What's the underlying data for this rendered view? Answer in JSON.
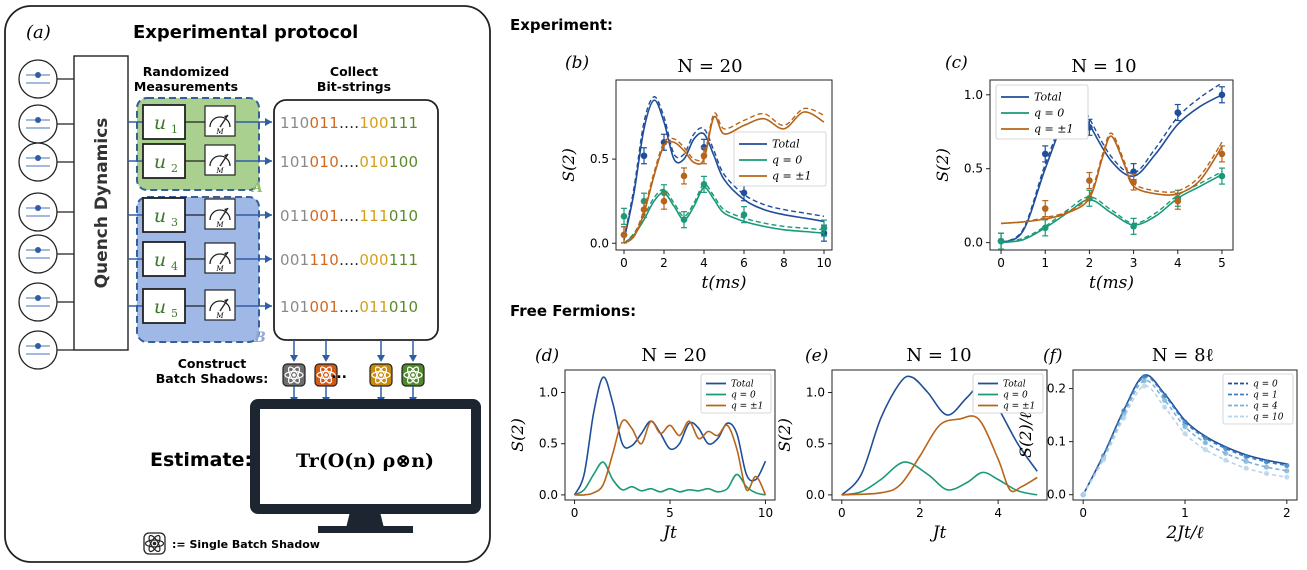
{
  "panel_a": {
    "label": "(a)",
    "title": "Experimental protocol",
    "quench": "Quench Dynamics",
    "randomized": [
      "Randomized",
      "Measurements"
    ],
    "collect": [
      "Collect",
      "Bit-strings"
    ],
    "unitaries": [
      "u",
      "u",
      "u",
      "u",
      "u"
    ],
    "unitary_subs": [
      "1",
      "2",
      "3",
      "4",
      "5"
    ],
    "meter_label": "M",
    "region_a": "A",
    "region_b": "B",
    "bitstrings": [
      [
        {
          "t": "110",
          "c": "#8a8a8a"
        },
        {
          "t": "011",
          "c": "#d2691e"
        },
        {
          "t": "....",
          "c": "#222222"
        },
        {
          "t": "100",
          "c": "#d4a017"
        },
        {
          "t": "111",
          "c": "#5a8a2a"
        }
      ],
      [
        {
          "t": "101",
          "c": "#8a8a8a"
        },
        {
          "t": "010",
          "c": "#d2691e"
        },
        {
          "t": "....",
          "c": "#222222"
        },
        {
          "t": "010",
          "c": "#d4a017"
        },
        {
          "t": "100",
          "c": "#5a8a2a"
        }
      ],
      [
        {
          "t": "011",
          "c": "#8a8a8a"
        },
        {
          "t": "001",
          "c": "#d2691e"
        },
        {
          "t": "....",
          "c": "#222222"
        },
        {
          "t": "111",
          "c": "#d4a017"
        },
        {
          "t": "010",
          "c": "#5a8a2a"
        }
      ],
      [
        {
          "t": "001",
          "c": "#8a8a8a"
        },
        {
          "t": "110",
          "c": "#d2691e"
        },
        {
          "t": "....",
          "c": "#222222"
        },
        {
          "t": "000",
          "c": "#d4a017"
        },
        {
          "t": "111",
          "c": "#5a8a2a"
        }
      ],
      [
        {
          "t": "101",
          "c": "#8a8a8a"
        },
        {
          "t": "001",
          "c": "#d2691e"
        },
        {
          "t": "....",
          "c": "#222222"
        },
        {
          "t": "011",
          "c": "#d4a017"
        },
        {
          "t": "010",
          "c": "#5a8a2a"
        }
      ]
    ],
    "construct": [
      "Construct",
      "Batch Shadows:"
    ],
    "shadow_colors": [
      "#6e6e6e",
      "#d05a16",
      "#c98a0a",
      "#4f8a2a"
    ],
    "dots": "...",
    "estimate": "Estimate:",
    "formula": "Tr(O(n) ρ⊗n)",
    "legend_text": ":= Single Batch Shadow"
  },
  "headers": {
    "experiment": "Experiment:",
    "free_fermions": "Free Fermions:"
  },
  "chart_data": [
    {
      "id": "b",
      "type": "line",
      "label": "(b)",
      "title": "N = 20",
      "xlabel": "t(ms)",
      "ylabel": "S(2)",
      "xlim": [
        -0.4,
        10.4
      ],
      "ylim": [
        -0.04,
        0.97
      ],
      "xticks": [
        0,
        2,
        4,
        6,
        8,
        10
      ],
      "yticks": [
        0.0,
        0.5
      ],
      "legend_position": "center-right",
      "series": [
        {
          "name": "Total",
          "color": "#1f4e9a",
          "x": [
            0,
            0.5,
            1,
            1.5,
            2,
            2.5,
            3,
            3.5,
            4,
            4.5,
            5,
            6,
            7,
            8,
            9,
            10
          ],
          "y": [
            0.02,
            0.3,
            0.68,
            0.85,
            0.72,
            0.5,
            0.5,
            0.62,
            0.65,
            0.52,
            0.38,
            0.26,
            0.2,
            0.17,
            0.15,
            0.13
          ],
          "y_dashed": [
            0.03,
            0.33,
            0.72,
            0.87,
            0.75,
            0.53,
            0.53,
            0.65,
            0.68,
            0.55,
            0.41,
            0.29,
            0.23,
            0.2,
            0.18,
            0.16
          ],
          "points_x": [
            0,
            1,
            2,
            4,
            6,
            10
          ],
          "points_y": [
            0.05,
            0.52,
            0.6,
            0.57,
            0.3,
            0.06
          ]
        },
        {
          "name": "q = 0",
          "color": "#1a9a78",
          "x": [
            0,
            0.5,
            1,
            1.5,
            2,
            2.5,
            3,
            3.5,
            4,
            4.5,
            5,
            6,
            7,
            8,
            9,
            10
          ],
          "y": [
            0.0,
            0.05,
            0.14,
            0.25,
            0.3,
            0.22,
            0.14,
            0.22,
            0.33,
            0.26,
            0.18,
            0.13,
            0.1,
            0.08,
            0.07,
            0.06
          ],
          "y_dashed": [
            0.0,
            0.06,
            0.16,
            0.27,
            0.32,
            0.24,
            0.16,
            0.24,
            0.35,
            0.28,
            0.2,
            0.15,
            0.12,
            0.1,
            0.09,
            0.08
          ],
          "points_x": [
            0,
            1,
            2,
            3,
            4,
            6,
            10
          ],
          "points_y": [
            0.16,
            0.25,
            0.3,
            0.14,
            0.35,
            0.17,
            0.09
          ]
        },
        {
          "name": "q = ±1",
          "color": "#b8641a",
          "x": [
            0,
            0.5,
            1,
            1.5,
            2,
            2.5,
            3,
            3.5,
            4,
            4.5,
            5,
            6,
            7,
            8,
            9,
            10
          ],
          "y": [
            0.0,
            0.04,
            0.18,
            0.4,
            0.58,
            0.6,
            0.55,
            0.48,
            0.5,
            0.75,
            0.65,
            0.7,
            0.74,
            0.68,
            0.78,
            0.72
          ],
          "y_dashed": [
            0.0,
            0.05,
            0.2,
            0.42,
            0.6,
            0.62,
            0.57,
            0.5,
            0.52,
            0.77,
            0.68,
            0.73,
            0.77,
            0.7,
            0.8,
            0.76
          ],
          "points_x": [
            0,
            1,
            2,
            3,
            4
          ],
          "points_y": [
            0.05,
            0.2,
            0.25,
            0.4,
            0.52
          ]
        }
      ]
    },
    {
      "id": "c",
      "type": "line",
      "label": "(c)",
      "title": "N = 10",
      "xlabel": "t(ms)",
      "ylabel": "S(2)",
      "xlim": [
        -0.25,
        5.25
      ],
      "ylim": [
        -0.05,
        1.1
      ],
      "xticks": [
        0,
        1,
        2,
        3,
        4,
        5
      ],
      "yticks": [
        0.0,
        0.5,
        1.0
      ],
      "legend_position": "top-left",
      "series": [
        {
          "name": "Total",
          "color": "#1f4e9a",
          "x": [
            0,
            0.5,
            1,
            1.5,
            1.8,
            2,
            2.5,
            3,
            3.5,
            4,
            4.5,
            5
          ],
          "y": [
            0.0,
            0.08,
            0.5,
            0.88,
            0.92,
            0.8,
            0.55,
            0.45,
            0.6,
            0.8,
            0.92,
            1.0
          ],
          "y_dashed": [
            0.0,
            0.09,
            0.53,
            0.9,
            0.95,
            0.84,
            0.58,
            0.47,
            0.64,
            0.85,
            0.98,
            1.08
          ],
          "points_x": [
            0,
            1,
            2,
            3,
            4,
            5
          ],
          "points_y": [
            0.01,
            0.6,
            0.78,
            0.48,
            0.88,
            1.0
          ]
        },
        {
          "name": "q = 0",
          "color": "#1a9a78",
          "x": [
            0,
            0.5,
            1,
            1.5,
            2,
            2.5,
            3,
            3.5,
            4,
            4.5,
            5
          ],
          "y": [
            0.0,
            0.02,
            0.1,
            0.2,
            0.29,
            0.2,
            0.12,
            0.18,
            0.3,
            0.38,
            0.46
          ],
          "y_dashed": [
            0.0,
            0.03,
            0.11,
            0.22,
            0.31,
            0.22,
            0.13,
            0.2,
            0.32,
            0.4,
            0.48
          ],
          "points_x": [
            0,
            1,
            2,
            3,
            4,
            5
          ],
          "points_y": [
            0.01,
            0.1,
            0.3,
            0.11,
            0.3,
            0.45
          ]
        },
        {
          "name": "q = ±1",
          "color": "#b8641a",
          "x": [
            0,
            0.5,
            1,
            1.5,
            2,
            2.3,
            2.5,
            2.8,
            3,
            3.5,
            4,
            4.5,
            5
          ],
          "y": [
            0.13,
            0.14,
            0.16,
            0.2,
            0.3,
            0.58,
            0.72,
            0.52,
            0.38,
            0.33,
            0.33,
            0.42,
            0.65
          ],
          "y_dashed": [
            0.13,
            0.14,
            0.17,
            0.21,
            0.32,
            0.6,
            0.74,
            0.54,
            0.4,
            0.35,
            0.35,
            0.45,
            0.68
          ],
          "points_x": [
            1,
            2,
            3,
            4,
            5
          ],
          "points_y": [
            0.23,
            0.42,
            0.41,
            0.28,
            0.6
          ]
        }
      ]
    },
    {
      "id": "d",
      "type": "line",
      "label": "(d)",
      "title": "N = 20",
      "xlabel": "Jt",
      "ylabel": "S(2)",
      "xlim": [
        -0.5,
        10.5
      ],
      "ylim": [
        -0.05,
        1.22
      ],
      "xticks": [
        0,
        5,
        10
      ],
      "yticks": [
        0.0,
        0.5,
        1.0
      ],
      "legend_position": "top-right",
      "series": [
        {
          "name": "Total",
          "color": "#1f4e9a",
          "x": [
            0,
            0.5,
            1,
            1.5,
            2,
            2.5,
            3,
            3.5,
            4,
            4.5,
            5,
            5.5,
            6,
            6.5,
            7,
            7.5,
            8,
            8.5,
            9,
            9.5,
            10
          ],
          "y": [
            0.0,
            0.2,
            0.8,
            1.15,
            0.9,
            0.5,
            0.48,
            0.6,
            0.72,
            0.6,
            0.45,
            0.5,
            0.7,
            0.65,
            0.5,
            0.55,
            0.7,
            0.6,
            0.2,
            0.15,
            0.33
          ]
        },
        {
          "name": "q = 0",
          "color": "#1a9a78",
          "x": [
            0,
            0.5,
            1,
            1.5,
            2,
            2.5,
            3,
            3.5,
            4,
            4.5,
            5,
            5.5,
            6,
            6.5,
            7,
            7.5,
            8,
            8.5,
            9,
            9.5,
            10
          ],
          "y": [
            0.0,
            0.05,
            0.2,
            0.32,
            0.15,
            0.05,
            0.08,
            0.04,
            0.06,
            0.03,
            0.06,
            0.03,
            0.05,
            0.04,
            0.06,
            0.03,
            0.06,
            0.2,
            0.08,
            0.02,
            0.0
          ]
        },
        {
          "name": "q = ±1",
          "color": "#b8641a",
          "x": [
            0,
            0.5,
            1,
            1.5,
            2,
            2.5,
            3,
            3.5,
            4,
            4.5,
            5,
            5.5,
            6,
            6.5,
            7,
            7.5,
            8,
            8.5,
            9,
            9.5,
            10
          ],
          "y": [
            0.0,
            0.0,
            0.02,
            0.1,
            0.4,
            0.72,
            0.65,
            0.5,
            0.72,
            0.6,
            0.68,
            0.58,
            0.72,
            0.55,
            0.62,
            0.58,
            0.68,
            0.45,
            0.05,
            0.18,
            0.0
          ]
        }
      ]
    },
    {
      "id": "e",
      "type": "line",
      "label": "(e)",
      "title": "N = 10",
      "xlabel": "Jt",
      "ylabel": "S(2)",
      "xlim": [
        -0.25,
        5.25
      ],
      "ylim": [
        -0.05,
        1.22
      ],
      "xticks": [
        0,
        2,
        4
      ],
      "yticks": [
        0.0,
        0.5,
        1.0
      ],
      "legend_position": "top-right",
      "series": [
        {
          "name": "Total",
          "color": "#1f4e9a",
          "x": [
            0,
            0.5,
            1,
            1.5,
            1.8,
            2.2,
            2.7,
            3.2,
            3.6,
            4,
            4.5,
            5
          ],
          "y": [
            0.0,
            0.2,
            0.75,
            1.1,
            1.15,
            1.0,
            0.78,
            0.95,
            1.08,
            0.85,
            0.5,
            0.23
          ]
        },
        {
          "name": "q = 0",
          "color": "#1a9a78",
          "x": [
            0,
            0.5,
            1,
            1.6,
            2.2,
            2.7,
            3.2,
            3.6,
            4,
            4.5,
            5
          ],
          "y": [
            0.0,
            0.03,
            0.15,
            0.32,
            0.2,
            0.05,
            0.12,
            0.22,
            0.15,
            0.04,
            0.0
          ]
        },
        {
          "name": "q = ±1",
          "color": "#b8641a",
          "x": [
            0,
            1,
            1.5,
            2,
            2.5,
            3,
            3.5,
            4,
            4.3,
            4.6,
            5
          ],
          "y": [
            0.0,
            0.02,
            0.1,
            0.38,
            0.68,
            0.74,
            0.74,
            0.35,
            0.05,
            0.08,
            0.17
          ]
        }
      ]
    },
    {
      "id": "f",
      "type": "line",
      "label": "(f)",
      "title": "N = 8ℓ",
      "xlabel": "2Jt/ℓ",
      "ylabel": "S(2)/ℓ",
      "xlim": [
        -0.1,
        2.1
      ],
      "ylim": [
        -0.01,
        0.235
      ],
      "xticks": [
        0,
        1,
        2
      ],
      "yticks": [
        0.0,
        0.1,
        0.2
      ],
      "legend_position": "top-right",
      "series": [
        {
          "name": "q = 0",
          "color": "#1f4e9a",
          "x": [
            0,
            0.2,
            0.4,
            0.6,
            0.8,
            1.0,
            1.2,
            1.4,
            1.6,
            1.8,
            2.0
          ],
          "y": [
            0.0,
            0.075,
            0.16,
            0.225,
            0.19,
            0.14,
            0.11,
            0.09,
            0.075,
            0.065,
            0.058
          ]
        },
        {
          "name": "q = 1",
          "color": "#3b80c0",
          "x": [
            0,
            0.2,
            0.4,
            0.6,
            0.8,
            1.0,
            1.2,
            1.4,
            1.6,
            1.8,
            2.0
          ],
          "y": [
            0.0,
            0.073,
            0.158,
            0.222,
            0.187,
            0.137,
            0.107,
            0.087,
            0.072,
            0.062,
            0.055
          ]
        },
        {
          "name": "q = 4",
          "color": "#7db0d8",
          "x": [
            0,
            0.2,
            0.4,
            0.6,
            0.8,
            1.0,
            1.2,
            1.4,
            1.6,
            1.8,
            2.0
          ],
          "y": [
            0.0,
            0.07,
            0.152,
            0.215,
            0.178,
            0.128,
            0.098,
            0.078,
            0.063,
            0.052,
            0.045
          ]
        },
        {
          "name": "q = 10",
          "color": "#b8d4ea",
          "x": [
            0,
            0.2,
            0.4,
            0.6,
            0.8,
            1.0,
            1.2,
            1.4,
            1.6,
            1.8,
            2.0
          ],
          "y": [
            0.0,
            0.066,
            0.145,
            0.205,
            0.165,
            0.115,
            0.085,
            0.065,
            0.05,
            0.04,
            0.033
          ]
        }
      ]
    }
  ]
}
